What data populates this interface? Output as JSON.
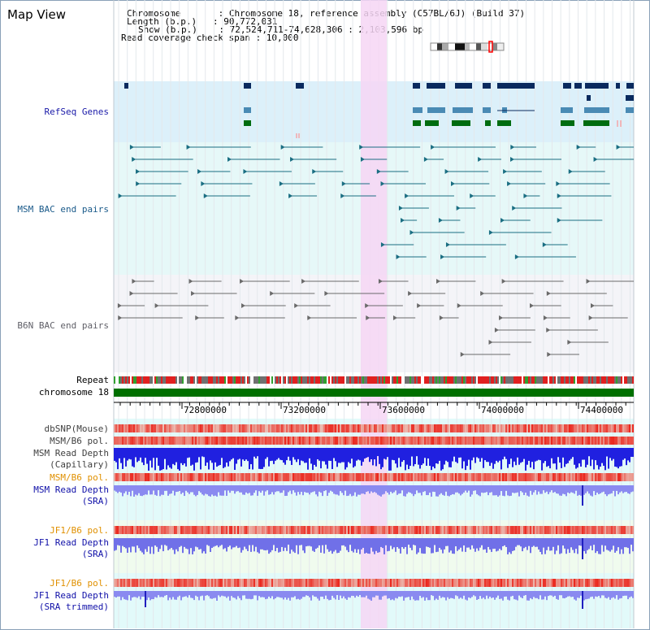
{
  "page": {
    "title": "Map View",
    "info_lines": [
      "Chromosome       : Chromosome 18, reference assembly (C57BL/6J) (Build 37)",
      "Length (b.p.)   : 90,772,031",
      "Show (b.p.)    : 72,524,711-74,628,306 : 2,103,596 bp",
      "Read coverage check span : 10,000"
    ]
  },
  "tracks": {
    "refseq": "RefSeq Genes",
    "msm_bac": "MSM BAC end pairs",
    "b6n_bac": "B6N BAC end pairs",
    "repeat": "Repeat",
    "chrom": "chromosome 18",
    "dbsnp": "dbSNP(Mouse)",
    "msm_b6_pol_1": "MSM/B6 pol.",
    "msm_depth_cap_1": "MSM Read Depth",
    "msm_depth_cap_2": "(Capillary)",
    "msm_b6_pol_2": "MSM/B6 pol.",
    "msm_depth_sra_1": "MSM Read Depth",
    "msm_depth_sra_2": "(SRA)",
    "jf1_b6_pol_1": "JF1/B6 pol.",
    "jf1_depth_sra_1": "JF1 Read Depth",
    "jf1_depth_sra_2": "(SRA)",
    "jf1_b6_pol_2": "JF1/B6 pol.",
    "jf1_depth_trim_1": "JF1 Read Depth",
    "jf1_depth_trim_2": "(SRA trimmed)"
  },
  "axis": {
    "ticks": [
      "72800000",
      "73200000",
      "73600000",
      "74000000",
      "74400000"
    ]
  },
  "colors": {
    "refseq_bg": "#dcf0fa",
    "refseq_label": "#1a1aa8",
    "msm_bg": "#e6f8f8",
    "msm_label": "#1a5a8a",
    "msm_feature": "#1a6e82",
    "b6n_bg": "#f4f4f8",
    "b6n_label": "#606068",
    "b6n_feature": "#6a6a6a",
    "highlight": "#f6d6f4",
    "pol_label": "#e09000",
    "depth_label": "#1010a8",
    "chrom_green": "#007000"
  }
}
